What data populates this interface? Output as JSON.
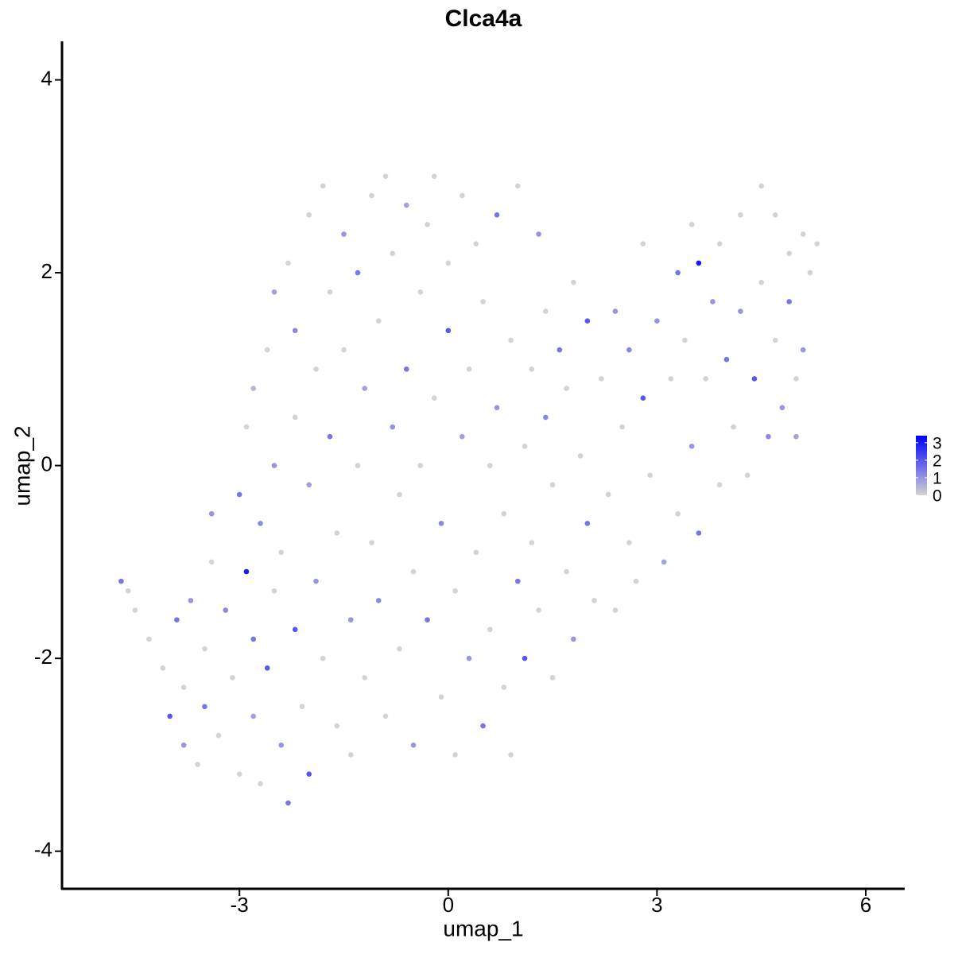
{
  "chart_data": {
    "type": "scatter",
    "title": "Clca4a",
    "x_label": "umap_1",
    "y_label": "umap_2",
    "xlim": [
      -5.55,
      6.56
    ],
    "ylim": [
      -4.39,
      4.4
    ],
    "xticks": [
      -3,
      0,
      3,
      6
    ],
    "yticks": [
      -4,
      -2,
      0,
      2,
      4
    ],
    "color_low": "#d3d3d3",
    "color_high": "#0000ff",
    "color_lim": [
      0,
      3.4
    ],
    "color_ticks": [
      0,
      1,
      2,
      3
    ],
    "x": [
      -4.7,
      -4.6,
      -4.5,
      -4.3,
      -4.1,
      -4.0,
      -3.9,
      -3.8,
      -3.8,
      -3.7,
      -3.6,
      -3.5,
      -3.5,
      -3.4,
      -3.4,
      -3.3,
      -3.2,
      -3.1,
      -3.0,
      -3.0,
      -2.9,
      -2.9,
      -2.8,
      -2.8,
      -2.8,
      -2.7,
      -2.7,
      -2.6,
      -2.6,
      -2.5,
      -2.5,
      -2.5,
      -2.4,
      -2.4,
      -2.3,
      -2.3,
      -2.2,
      -2.2,
      -2.2,
      -2.1,
      -2.0,
      -2.0,
      -2.0,
      -1.9,
      -1.9,
      -1.8,
      -1.8,
      -1.7,
      -1.7,
      -1.6,
      -1.6,
      -1.5,
      -1.5,
      -1.4,
      -1.4,
      -1.3,
      -1.3,
      -1.2,
      -1.2,
      -1.1,
      -1.1,
      -1.0,
      -1.0,
      -0.9,
      -0.9,
      -0.8,
      -0.8,
      -0.7,
      -0.7,
      -0.6,
      -0.6,
      -0.5,
      -0.5,
      -0.4,
      -0.4,
      -0.3,
      -0.3,
      -0.2,
      -0.2,
      -0.1,
      -0.1,
      0,
      0,
      0.1,
      0.1,
      0.2,
      0.2,
      0.3,
      0.3,
      0.4,
      0.4,
      0.5,
      0.5,
      0.6,
      0.6,
      0.7,
      0.7,
      0.8,
      0.8,
      0.9,
      0.9,
      1.0,
      1.0,
      1.1,
      1.1,
      1.2,
      1.2,
      1.3,
      1.3,
      1.4,
      1.4,
      1.5,
      1.5,
      1.6,
      1.7,
      1.7,
      1.8,
      1.8,
      1.9,
      2.0,
      2.0,
      2.1,
      2.2,
      2.3,
      2.4,
      2.4,
      2.5,
      2.6,
      2.6,
      2.7,
      2.8,
      2.8,
      2.9,
      3.0,
      3.1,
      3.2,
      3.3,
      3.3,
      3.4,
      3.5,
      3.5,
      3.6,
      3.6,
      3.7,
      3.8,
      3.9,
      3.9,
      4.0,
      4.1,
      4.2,
      4.2,
      4.3,
      4.4,
      4.5,
      4.5,
      4.6,
      4.7,
      4.7,
      4.8,
      4.9,
      4.9,
      5.0,
      5.1,
      5.1,
      5.2,
      5.3,
      5.0
    ],
    "values": [
      -1.2,
      -1.3,
      -1.5,
      -1.8,
      -2.1,
      -2.6,
      -1.6,
      -2.3,
      -2.9,
      -1.4,
      -3.1,
      -2.5,
      -1.9,
      -1.0,
      -0.5,
      -2.8,
      -1.5,
      -2.2,
      -3.2,
      -0.3,
      -1.1,
      0.4,
      -2.6,
      -1.8,
      0.8,
      -0.6,
      -3.3,
      1.2,
      -2.1,
      -1.3,
      0,
      1.8,
      -2.9,
      -0.9,
      2.1,
      -3.5,
      -1.7,
      0.5,
      1.4,
      -2.5,
      -3.2,
      -0.2,
      2.6,
      1.0,
      -1.2,
      -2.0,
      2.9,
      0.3,
      1.8,
      -2.7,
      -0.7,
      2.4,
      1.2,
      -1.6,
      -3.0,
      0,
      2.0,
      -2.2,
      0.8,
      2.8,
      -0.8,
      1.5,
      -1.4,
      3.0,
      -2.6,
      0.4,
      2.2,
      -1.9,
      -0.3,
      1.0,
      2.7,
      -1.1,
      -2.9,
      1.8,
      0,
      2.5,
      -1.6,
      3.0,
      0.7,
      -0.6,
      -2.4,
      1.4,
      2.1,
      -3.0,
      -1.3,
      0.3,
      2.8,
      -2.0,
      1.0,
      -0.9,
      2.3,
      -2.7,
      1.7,
      0,
      -1.7,
      2.6,
      0.6,
      -2.3,
      -0.5,
      1.3,
      -3.0,
      2.9,
      -1.2,
      0.2,
      -2.0,
      1.0,
      -0.8,
      2.4,
      -1.5,
      0.5,
      1.6,
      -2.2,
      -0.2,
      1.2,
      -1.1,
      0.8,
      -1.8,
      1.9,
      0.1,
      -0.6,
      1.5,
      -1.4,
      0.9,
      -0.3,
      1.6,
      -1.5,
      0.4,
      -0.8,
      1.2,
      -1.2,
      2.3,
      0.7,
      -0.1,
      1.5,
      -1.0,
      0.9,
      2.0,
      -0.5,
      1.3,
      0.2,
      2.5,
      2.1,
      -0.7,
      0.9,
      1.7,
      -0.2,
      2.3,
      1.1,
      0.4,
      2.6,
      1.6,
      -0.1,
      0.9,
      2.9,
      1.9,
      0.3,
      2.6,
      1.3,
      0.6,
      2.2,
      1.7,
      0.9,
      2.4,
      1.2,
      2.0,
      2.3,
      0.3
    ],
    "expression": [
      1.5,
      0,
      0,
      0,
      0,
      2,
      1.5,
      0,
      1,
      1,
      0,
      1.5,
      0,
      0,
      1,
      0,
      1.2,
      0,
      0,
      1.5,
      3,
      0,
      0.8,
      1.5,
      0.5,
      1.2,
      0,
      0,
      2,
      0,
      1,
      0.8,
      1,
      0,
      0,
      1.5,
      2,
      0,
      1.2,
      0,
      2,
      0.8,
      0,
      0,
      1,
      0,
      0,
      1.5,
      0,
      0,
      0,
      1,
      0,
      1,
      0,
      0,
      1.5,
      0,
      0.8,
      0,
      0,
      0,
      1.2,
      0,
      0,
      1,
      0,
      0,
      0,
      1.5,
      0.8,
      0,
      1,
      0,
      0,
      0,
      1.5,
      0,
      0,
      1.2,
      0,
      2,
      0,
      0,
      0,
      0.8,
      0,
      1,
      0,
      0,
      0,
      1.5,
      0,
      0,
      0,
      1.5,
      1,
      0,
      0,
      0,
      0,
      0,
      1.5,
      0,
      2,
      0,
      0,
      1,
      0,
      1.2,
      0,
      0,
      0,
      1.5,
      0,
      0,
      1,
      0,
      0,
      1.5,
      2,
      0,
      0,
      0,
      1,
      0,
      0,
      0,
      1.2,
      0,
      0,
      2,
      0,
      1,
      0.8,
      0,
      1.5,
      0,
      0,
      1,
      0,
      3,
      1.5,
      0,
      1,
      0,
      0,
      1.5,
      0,
      0,
      1,
      0,
      2,
      0,
      0,
      1.2,
      0,
      0,
      1,
      0,
      1.5,
      0,
      0,
      1,
      0,
      0,
      0.8
    ]
  }
}
